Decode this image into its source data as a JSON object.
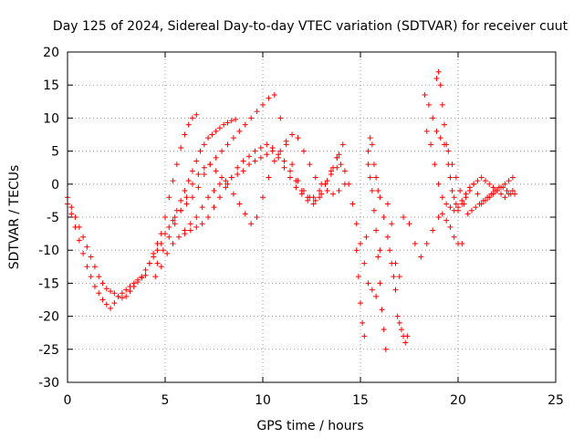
{
  "chart_data": {
    "type": "scatter",
    "title": "Day 125 of 2024, Sidereal Day-to-day VTEC variation (SDTVAR) for receiver cuut",
    "xlabel": "GPS time / hours",
    "ylabel": "SDTVAR / TECUs",
    "xlim": [
      0,
      25
    ],
    "ylim": [
      -30,
      20
    ],
    "xticks": [
      0,
      5,
      10,
      15,
      20,
      25
    ],
    "yticks": [
      -30,
      -25,
      -20,
      -15,
      -10,
      -5,
      0,
      5,
      10,
      15,
      20
    ],
    "xtick_labels": [
      "0",
      "5",
      "10",
      "15",
      "20",
      "25"
    ],
    "ytick_labels": [
      "-30",
      "-25",
      "-20",
      "-15",
      "-10",
      "-5",
      "0",
      "5",
      "10",
      "15",
      "20"
    ],
    "grid": true,
    "marker": "+",
    "color": "#ff0000",
    "series": [
      {
        "name": "trace-1",
        "x": [
          0.0,
          0.2,
          0.4,
          0.6,
          0.8,
          1.0,
          1.2,
          1.4,
          1.6,
          1.8,
          2.0,
          2.2,
          2.4,
          2.6,
          2.8,
          3.0,
          3.2,
          3.4,
          3.6,
          3.8,
          4.0,
          4.2,
          4.4,
          4.6,
          4.8,
          5.0,
          5.2,
          5.4,
          5.6,
          5.8,
          6.0,
          6.2,
          6.4,
          6.6
        ],
        "y": [
          -2,
          -3.5,
          -5,
          -6.5,
          -8,
          -9.5,
          -11,
          -12.5,
          -14,
          -15,
          -15.8,
          -16.2,
          -16.5,
          -17,
          -17.2,
          -17,
          -16.2,
          -15.5,
          -14.8,
          -14.2,
          -13.8,
          -12,
          -10.5,
          -9,
          -7.5,
          -5,
          -2,
          0.5,
          3,
          5.5,
          7.5,
          9,
          10,
          10.5
        ]
      },
      {
        "name": "trace-2",
        "x": [
          0.0,
          0.2,
          0.4,
          0.6,
          0.8,
          1.0,
          1.2,
          1.4,
          1.6,
          1.8,
          2.0,
          2.2,
          2.4,
          2.6,
          2.8,
          3.0,
          3.2,
          3.4,
          3.6,
          3.8,
          4.0,
          4.2,
          4.4,
          4.6,
          4.8,
          5.0,
          5.2,
          5.4,
          5.6,
          5.8,
          6.0,
          6.2,
          6.4,
          6.6,
          6.8,
          7.0,
          7.2,
          7.4,
          7.6,
          7.8,
          8.0,
          8.2,
          8.4,
          8.6
        ],
        "y": [
          -3,
          -4.5,
          -6.5,
          -8.5,
          -10.5,
          -12.5,
          -14,
          -15.5,
          -16.5,
          -17.5,
          -18.2,
          -18.8,
          -18,
          -17,
          -16.5,
          -16,
          -15.5,
          -15,
          -14.5,
          -14,
          -13,
          -12,
          -11,
          -10,
          -9,
          -7.5,
          -6.5,
          -5.5,
          -4,
          -2.5,
          -1,
          0.5,
          2,
          3.5,
          5,
          6,
          7,
          7.5,
          8,
          8.5,
          9,
          9.3,
          9.6,
          9.8
        ]
      },
      {
        "name": "trace-3",
        "x": [
          4.5,
          4.8,
          5.1,
          5.4,
          5.7,
          6.0,
          6.3,
          6.6,
          6.9,
          7.2,
          7.5,
          7.8,
          8.1,
          8.4,
          8.7,
          9.0,
          9.3,
          9.6,
          9.9,
          10.2,
          10.5,
          10.8,
          11.1,
          11.4,
          11.7,
          12.0,
          12.3,
          12.6,
          12.9,
          13.2,
          13.5,
          13.8
        ],
        "y": [
          -14,
          -12.5,
          -10.5,
          -9,
          -8,
          -7.5,
          -7,
          -6.5,
          -6,
          -5,
          -3.5,
          -2,
          -0.5,
          1,
          2.5,
          3.5,
          4.2,
          5,
          5.5,
          6,
          5.5,
          4,
          2.5,
          1,
          -0.5,
          -1.5,
          -2.5,
          -2,
          -1,
          0,
          1.5,
          2.5
        ]
      },
      {
        "name": "trace-4",
        "x": [
          5.5,
          5.8,
          6.1,
          6.4,
          6.7,
          7.0,
          7.3,
          7.6,
          7.9,
          8.2,
          8.5,
          8.8,
          9.1,
          9.4,
          9.7,
          10.0,
          10.3,
          10.6,
          10.9,
          11.2,
          11.5,
          11.8,
          12.1,
          12.4,
          12.7,
          13.0,
          13.3,
          13.6,
          13.9
        ],
        "y": [
          -5,
          -4,
          -3,
          -2,
          -0.5,
          1.5,
          3,
          4,
          5,
          6,
          7,
          8,
          9,
          10,
          11,
          12,
          13,
          13.5,
          10,
          6,
          3,
          0.5,
          -1,
          -2,
          -2.5,
          -1.5,
          0.5,
          2.5,
          4.5
        ]
      },
      {
        "name": "trace-5",
        "x": [
          4.6,
          4.9,
          5.2,
          5.5,
          5.8,
          6.1,
          6.4,
          6.7,
          7.0,
          7.3,
          7.6,
          7.9,
          8.2,
          8.5,
          8.8,
          9.1,
          9.4,
          9.7,
          10.0,
          10.3,
          10.6,
          10.9,
          11.2,
          11.5,
          11.8,
          12.1,
          12.4,
          12.7,
          13.0,
          13.3,
          13.6,
          13.9,
          14.2
        ],
        "y": [
          -12,
          -10,
          -8,
          -6,
          -4,
          -2,
          0,
          1.5,
          2.5,
          3,
          2,
          1,
          0,
          -1.5,
          -3,
          -4.5,
          -6,
          -5,
          -2,
          1,
          3.5,
          5,
          6.5,
          7.5,
          7,
          5,
          3,
          1,
          0,
          -1,
          -1.5,
          -1,
          0
        ]
      },
      {
        "name": "trace-6",
        "x": [
          6.0,
          6.3,
          6.6,
          6.9,
          7.2,
          7.5,
          7.8,
          8.1,
          8.4,
          8.7,
          9.0,
          9.3,
          9.6,
          9.9,
          10.2,
          10.5,
          10.8,
          11.1,
          11.4,
          11.7,
          12.0,
          12.3,
          12.6,
          12.9,
          13.2,
          13.5,
          13.8,
          14.1
        ],
        "y": [
          -7,
          -6,
          -5,
          -3.5,
          -2,
          -1,
          0,
          0.5,
          1,
          1.5,
          2,
          3,
          3.5,
          4,
          4.5,
          5,
          4.5,
          3.5,
          2,
          0.5,
          -1,
          -2,
          -3,
          -2,
          0,
          2,
          4,
          6
        ]
      },
      {
        "name": "trace-7",
        "x": [
          13.8,
          14.0,
          14.2,
          14.4,
          14.6,
          14.8,
          15.0,
          15.2,
          15.4,
          15.6,
          15.8,
          16.0,
          16.2,
          16.4,
          16.6,
          16.8,
          17.0
        ],
        "y": [
          4,
          3,
          2,
          0,
          -3,
          -6,
          -9,
          -12,
          -15,
          -16,
          -17,
          -10,
          -5,
          -3,
          -6,
          -12,
          -14
        ]
      },
      {
        "name": "trace-8",
        "x": [
          14.8,
          14.9,
          15.0,
          15.1,
          15.2,
          15.3,
          15.4,
          15.5,
          15.6,
          15.7,
          15.8,
          15.9,
          16.0
        ],
        "y": [
          -10,
          -14,
          -18,
          -21,
          -23,
          -8,
          5,
          7,
          6,
          3,
          1,
          -1,
          -2
        ]
      },
      {
        "name": "trace-9",
        "x": [
          15.4,
          15.5,
          15.6,
          15.7,
          15.8,
          15.9,
          16.0,
          16.1,
          16.2,
          16.3,
          16.4,
          16.5,
          16.6,
          16.7,
          16.8,
          16.9,
          17.0,
          17.1,
          17.2,
          17.3,
          17.4
        ],
        "y": [
          3,
          1,
          -1,
          -4,
          -7,
          -11,
          -15,
          -19,
          -22,
          -25,
          -8,
          -10,
          -12,
          -14,
          -16,
          -20,
          -21,
          -22,
          -23,
          -24,
          -23
        ]
      },
      {
        "name": "trace-10",
        "x": [
          17.2,
          17.5,
          17.8,
          18.1,
          18.4,
          18.7,
          19.0,
          19.2,
          19.4,
          19.6,
          19.8,
          20.0,
          20.2
        ],
        "y": [
          -5,
          -6,
          -9,
          -11,
          -9,
          -7,
          -5,
          -4.5,
          -5.5,
          -6.5,
          -8,
          -9,
          -9
        ]
      },
      {
        "name": "trace-11",
        "x": [
          18.3,
          18.5,
          18.7,
          18.9,
          19.1,
          19.3,
          19.5,
          19.7,
          19.9,
          20.1,
          20.3,
          20.5,
          20.7,
          20.9,
          21.1,
          21.3,
          21.5,
          21.7,
          21.9,
          22.1,
          22.3,
          22.5,
          22.7,
          22.9
        ],
        "y": [
          13.5,
          12,
          10,
          8,
          7,
          6,
          5,
          3,
          1,
          -1,
          -3,
          -4.5,
          -4,
          -3.5,
          -3,
          -2.5,
          -2,
          -1.5,
          -1,
          -0.5,
          -0.5,
          -1,
          -1.5,
          -1.5
        ]
      },
      {
        "name": "trace-12",
        "x": [
          18.4,
          18.6,
          18.8,
          19.0,
          19.2,
          19.4,
          19.6,
          19.8,
          20.0,
          20.2,
          20.4,
          20.6,
          20.8,
          21.0,
          21.2,
          21.4,
          21.6,
          21.8,
          22.0,
          22.2,
          22.4,
          22.6,
          22.8
        ],
        "y": [
          8,
          6,
          3,
          0,
          -2,
          -3,
          -3.5,
          -4,
          -3.5,
          -2.5,
          -1.5,
          -0.5,
          0,
          -1.5,
          -3,
          -2.5,
          -2,
          -1.5,
          -1,
          -0.5,
          0,
          0.5,
          1
        ]
      },
      {
        "name": "trace-13",
        "x": [
          18.9,
          19.0,
          19.1,
          19.2,
          19.3,
          19.4,
          19.5,
          19.6,
          19.7,
          19.8,
          19.9,
          20.0,
          20.2,
          20.4,
          20.6,
          20.8,
          21.0,
          21.2,
          21.4,
          21.6,
          21.8,
          22.0,
          22.2,
          22.4,
          22.6,
          22.8
        ],
        "y": [
          16,
          17,
          15,
          12,
          9,
          6,
          3,
          1,
          -1,
          -2,
          -3,
          -4,
          -3,
          -2,
          -1,
          0,
          0.5,
          1,
          0.5,
          0,
          -0.5,
          -1,
          -1.5,
          -2,
          -1.5,
          -1
        ]
      }
    ]
  }
}
